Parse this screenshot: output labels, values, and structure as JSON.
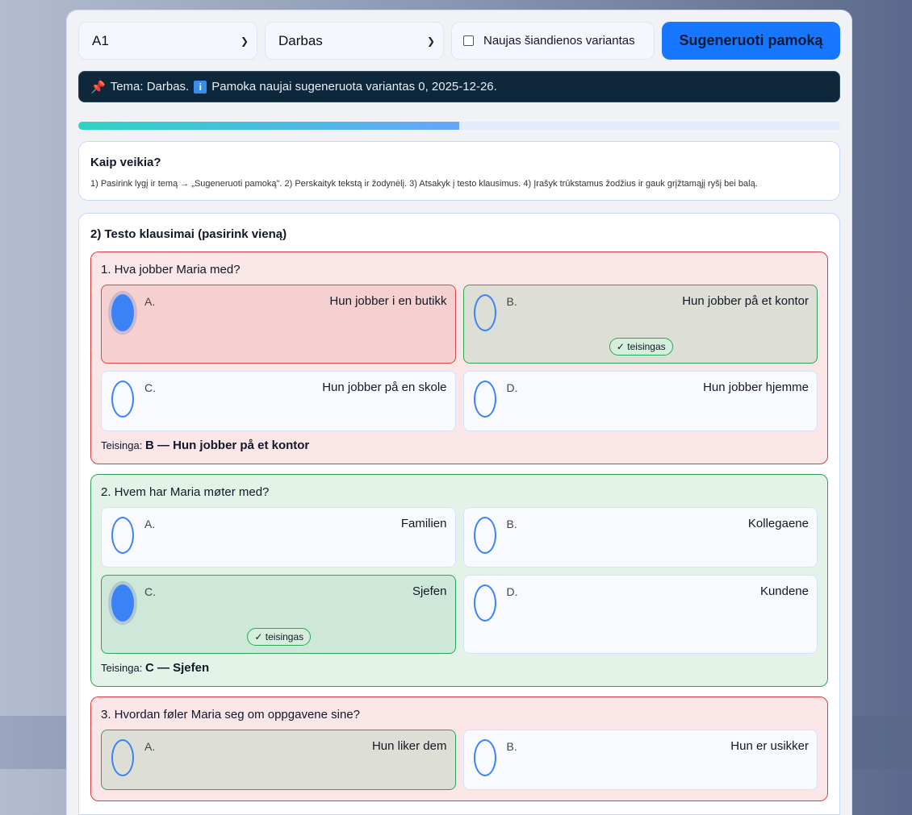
{
  "controls": {
    "level": "A1",
    "topic": "Darbas",
    "checkbox_label": "Naujas šiandienos variantas",
    "checkbox_checked": false,
    "generate_label": "Sugeneruoti pamoką"
  },
  "banner": {
    "topic_text": "Tema: Darbas.",
    "info_text": "Pamoka naujai sugeneruota variantas 0, 2025-12-26.",
    "pin_icon": "pushpin-icon",
    "info_icon": "info-icon"
  },
  "progress": {
    "percent": 50
  },
  "howto": {
    "title": "Kaip veikia?",
    "text": "1) Pasirink lygį ir temą → „Sugeneruoti pamoką\". 2) Perskaityk tekstą ir žodynėlį. 3) Atsakyk į testo klausimus. 4) Įrašyk trūkstamus žodžius ir gauk grįžtamąjį ryšį bei balą."
  },
  "quiz": {
    "title": "2) Testo klausimai (pasirink vieną)",
    "correct_badge": "✓ teisingas",
    "answer_prefix": "Teisinga:",
    "questions": [
      {
        "text": "1. Hva jobber Maria med?",
        "result": "wrong",
        "selected": "A",
        "correct": "B",
        "answer": "B — Hun jobber på et kontor",
        "options": [
          {
            "letter": "A.",
            "text": "Hun jobber i en butikk"
          },
          {
            "letter": "B.",
            "text": "Hun jobber på et kontor"
          },
          {
            "letter": "C.",
            "text": "Hun jobber på en skole"
          },
          {
            "letter": "D.",
            "text": "Hun jobber hjemme"
          }
        ]
      },
      {
        "text": "2. Hvem har Maria møter med?",
        "result": "right",
        "selected": "C",
        "correct": "C",
        "answer": "C — Sjefen",
        "options": [
          {
            "letter": "A.",
            "text": "Familien"
          },
          {
            "letter": "B.",
            "text": "Kollegaene"
          },
          {
            "letter": "C.",
            "text": "Sjefen"
          },
          {
            "letter": "D.",
            "text": "Kundene"
          }
        ]
      },
      {
        "text": "3. Hvordan føler Maria seg om oppgavene sine?",
        "result": "wrong",
        "selected": null,
        "correct": "A",
        "options": [
          {
            "letter": "A.",
            "text": "Hun liker dem"
          },
          {
            "letter": "B.",
            "text": "Hun er usikker"
          }
        ]
      }
    ]
  }
}
